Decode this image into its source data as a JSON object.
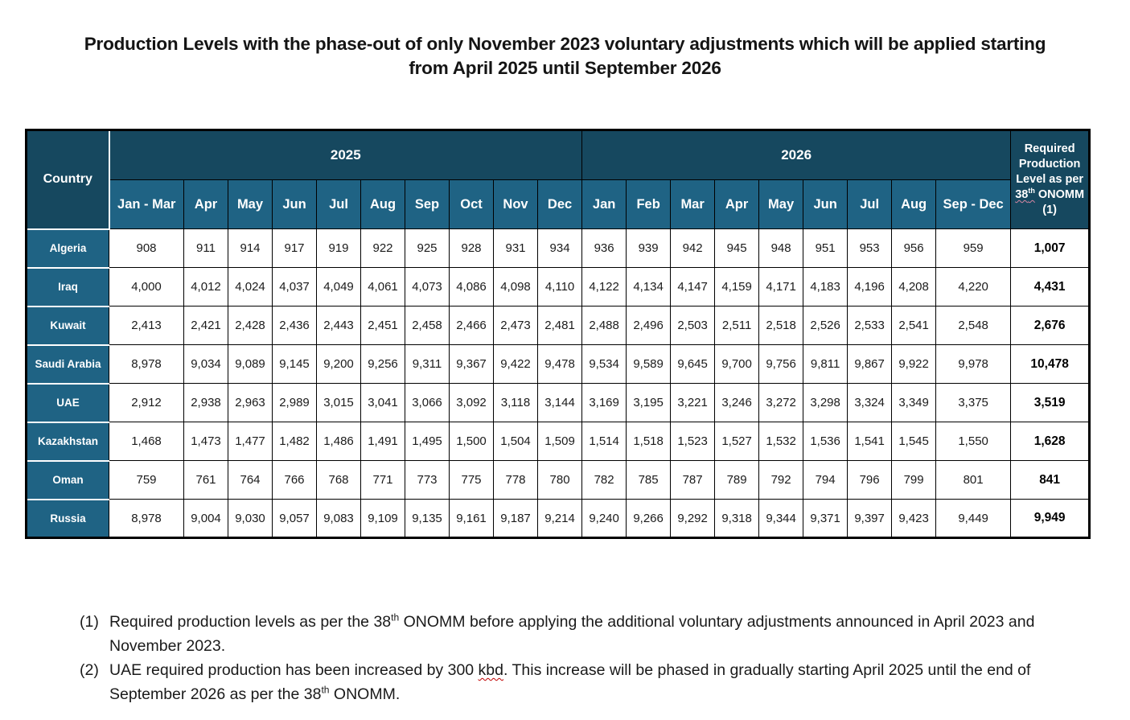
{
  "title": "Production Levels with the phase-out of only November 2023 voluntary adjustments which will be applied starting from April 2025 until September 2026",
  "colors": {
    "header_dark_teal": "#16485F",
    "header_medium_teal": "#1F6384",
    "grid_border": "#000000",
    "country_separator": "#FFFFFF",
    "spellcheck_red": "#C00000",
    "spellcheck_pink": "#D786A2"
  },
  "table": {
    "country_header": "Country",
    "year_2025": "2025",
    "year_2026": "2026",
    "months_2025": [
      "Jan - Mar",
      "Apr",
      "May",
      "Jun",
      "Jul",
      "Aug",
      "Sep",
      "Oct",
      "Nov",
      "Dec"
    ],
    "months_2026": [
      "Jan",
      "Feb",
      "Mar",
      "Apr",
      "May",
      "Jun",
      "Jul",
      "Aug",
      "Sep - Dec"
    ],
    "required_header": {
      "line_pre": "Required Production Level as per",
      "num": "38",
      "sup": "th",
      "line_post": "ONOMM (1)"
    },
    "rows": [
      {
        "country": "Algeria",
        "y2025": [
          "908",
          "911",
          "914",
          "917",
          "919",
          "922",
          "925",
          "928",
          "931",
          "934"
        ],
        "y2026": [
          "936",
          "939",
          "942",
          "945",
          "948",
          "951",
          "953",
          "956",
          "959"
        ],
        "required": "1,007"
      },
      {
        "country": "Iraq",
        "y2025": [
          "4,000",
          "4,012",
          "4,024",
          "4,037",
          "4,049",
          "4,061",
          "4,073",
          "4,086",
          "4,098",
          "4,110"
        ],
        "y2026": [
          "4,122",
          "4,134",
          "4,147",
          "4,159",
          "4,171",
          "4,183",
          "4,196",
          "4,208",
          "4,220"
        ],
        "required": "4,431"
      },
      {
        "country": "Kuwait",
        "y2025": [
          "2,413",
          "2,421",
          "2,428",
          "2,436",
          "2,443",
          "2,451",
          "2,458",
          "2,466",
          "2,473",
          "2,481"
        ],
        "y2026": [
          "2,488",
          "2,496",
          "2,503",
          "2,511",
          "2,518",
          "2,526",
          "2,533",
          "2,541",
          "2,548"
        ],
        "required": "2,676"
      },
      {
        "country": "Saudi Arabia",
        "y2025": [
          "8,978",
          "9,034",
          "9,089",
          "9,145",
          "9,200",
          "9,256",
          "9,311",
          "9,367",
          "9,422",
          "9,478"
        ],
        "y2026": [
          "9,534",
          "9,589",
          "9,645",
          "9,700",
          "9,756",
          "9,811",
          "9,867",
          "9,922",
          "9,978"
        ],
        "required": "10,478"
      },
      {
        "country": "UAE",
        "y2025": [
          "2,912",
          "2,938",
          "2,963",
          "2,989",
          "3,015",
          "3,041",
          "3,066",
          "3,092",
          "3,118",
          "3,144"
        ],
        "y2026": [
          "3,169",
          "3,195",
          "3,221",
          "3,246",
          "3,272",
          "3,298",
          "3,324",
          "3,349",
          "3,375"
        ],
        "required": "3,519"
      },
      {
        "country": "Kazakhstan",
        "y2025": [
          "1,468",
          "1,473",
          "1,477",
          "1,482",
          "1,486",
          "1,491",
          "1,495",
          "1,500",
          "1,504",
          "1,509"
        ],
        "y2026": [
          "1,514",
          "1,518",
          "1,523",
          "1,527",
          "1,532",
          "1,536",
          "1,541",
          "1,545",
          "1,550"
        ],
        "required": "1,628"
      },
      {
        "country": "Oman",
        "y2025": [
          "759",
          "761",
          "764",
          "766",
          "768",
          "771",
          "773",
          "775",
          "778",
          "780"
        ],
        "y2026": [
          "782",
          "785",
          "787",
          "789",
          "792",
          "794",
          "796",
          "799",
          "801"
        ],
        "required": "841"
      },
      {
        "country": "Russia",
        "y2025": [
          "8,978",
          "9,004",
          "9,030",
          "9,057",
          "9,083",
          "9,109",
          "9,135",
          "9,161",
          "9,187",
          "9,214"
        ],
        "y2026": [
          "9,240",
          "9,266",
          "9,292",
          "9,318",
          "9,344",
          "9,371",
          "9,397",
          "9,423",
          "9,449"
        ],
        "required": "9,949"
      }
    ]
  },
  "footnotes": {
    "f1": {
      "marker": "(1)",
      "before_sup": "Required production levels as per the 38",
      "sup": "th",
      "after_sup": " ONOMM before applying the additional voluntary adjustments announced in April 2023 and November 2023."
    },
    "f2": {
      "marker": "(2)",
      "start": "UAE required production has been increased by 300 ",
      "misspelled": "kbd",
      "mid": ". This increase will be phased in gradually starting April 2025 until the end of September 2026 as per the 38",
      "sup": "th",
      "end": " ONOMM."
    }
  }
}
